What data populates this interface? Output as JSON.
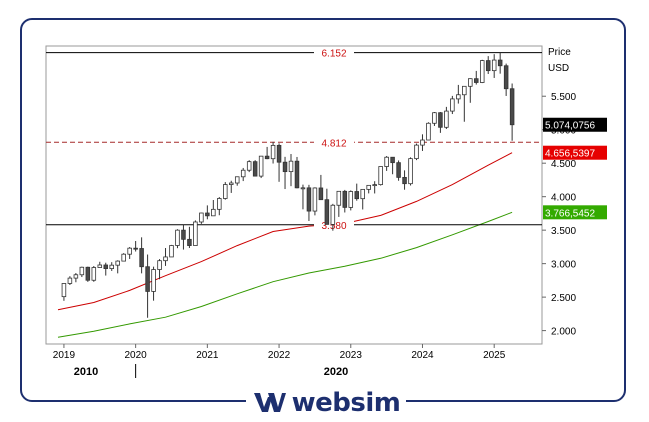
{
  "brand": {
    "name": "websim",
    "logo_icon": "websim-w-icon",
    "color": "#1d2f6f"
  },
  "chart_data": {
    "type": "candlestick",
    "title": "",
    "ylabel": "Price",
    "yunit": "USD",
    "ylim": [
      1800,
      6250
    ],
    "yticks": [
      2000,
      2500,
      3000,
      3500,
      4000,
      4500,
      5000,
      5500
    ],
    "ytick_labels": [
      "2.000",
      "2.500",
      "3.000",
      "3.500",
      "4.000",
      "4.500",
      "5.000",
      "5.500"
    ],
    "xlim": [
      "2018-10",
      "2025-09"
    ],
    "xticks": [
      "2019",
      "2020",
      "2021",
      "2022",
      "2023",
      "2024",
      "2025"
    ],
    "decade_labels": [
      "2010",
      "2020"
    ],
    "grid": false,
    "reference_lines": [
      {
        "value": 6152,
        "label": "6.152",
        "style": "solid",
        "color": "#000000"
      },
      {
        "value": 4812,
        "label": "4.812",
        "style": "dashed",
        "color": "#a52a2a"
      },
      {
        "value": 3580,
        "label": "3.580",
        "style": "solid",
        "color": "#000000"
      }
    ],
    "value_tags": [
      {
        "value": 5074.0756,
        "label": "5.074,0756",
        "color": "#000000"
      },
      {
        "value": 4656.5397,
        "label": "4.656,5397",
        "color": "#e60000"
      },
      {
        "value": 3766.5452,
        "label": "3.766,5452",
        "color": "#33aa00"
      }
    ],
    "series": [
      {
        "type": "moving_average",
        "color": "#cc0000",
        "points": [
          [
            "2018-12",
            2310
          ],
          [
            "2019-06",
            2420
          ],
          [
            "2019-12",
            2600
          ],
          [
            "2020-06",
            2820
          ],
          [
            "2020-12",
            3030
          ],
          [
            "2021-06",
            3270
          ],
          [
            "2021-12",
            3480
          ],
          [
            "2022-06",
            3560
          ],
          [
            "2022-12",
            3600
          ],
          [
            "2023-06",
            3720
          ],
          [
            "2023-12",
            3930
          ],
          [
            "2024-06",
            4180
          ],
          [
            "2024-12",
            4470
          ],
          [
            "2025-04",
            4656
          ]
        ]
      },
      {
        "type": "moving_average",
        "color": "#339900",
        "points": [
          [
            "2018-12",
            1900
          ],
          [
            "2019-06",
            1990
          ],
          [
            "2019-12",
            2100
          ],
          [
            "2020-06",
            2200
          ],
          [
            "2020-12",
            2360
          ],
          [
            "2021-06",
            2550
          ],
          [
            "2021-12",
            2730
          ],
          [
            "2022-06",
            2860
          ],
          [
            "2022-12",
            2960
          ],
          [
            "2023-06",
            3080
          ],
          [
            "2023-12",
            3240
          ],
          [
            "2024-06",
            3430
          ],
          [
            "2024-12",
            3630
          ],
          [
            "2025-04",
            3766
          ]
        ]
      }
    ],
    "candles": [
      [
        "2019-01",
        2507,
        2710,
        2445,
        2704
      ],
      [
        "2019-02",
        2704,
        2813,
        2681,
        2784
      ],
      [
        "2019-03",
        2784,
        2860,
        2722,
        2834
      ],
      [
        "2019-04",
        2834,
        2955,
        2800,
        2946
      ],
      [
        "2019-05",
        2946,
        2955,
        2728,
        2752
      ],
      [
        "2019-06",
        2752,
        2965,
        2729,
        2942
      ],
      [
        "2019-07",
        2942,
        3028,
        2940,
        2980
      ],
      [
        "2019-08",
        2980,
        3014,
        2822,
        2926
      ],
      [
        "2019-09",
        2926,
        3022,
        2891,
        2977
      ],
      [
        "2019-10",
        2977,
        3050,
        2855,
        3038
      ],
      [
        "2019-11",
        3038,
        3157,
        3037,
        3141
      ],
      [
        "2019-12",
        3141,
        3248,
        3070,
        3231
      ],
      [
        "2020-01",
        3231,
        3338,
        3181,
        3226
      ],
      [
        "2020-02",
        3226,
        3393,
        2855,
        2954
      ],
      [
        "2020-03",
        2954,
        3136,
        2192,
        2585
      ],
      [
        "2020-04",
        2585,
        2955,
        2447,
        2912
      ],
      [
        "2020-05",
        2912,
        3068,
        2767,
        3044
      ],
      [
        "2020-06",
        3044,
        3233,
        2966,
        3100
      ],
      [
        "2020-07",
        3100,
        3280,
        3100,
        3271
      ],
      [
        "2020-08",
        3271,
        3514,
        3231,
        3500
      ],
      [
        "2020-09",
        3500,
        3588,
        3210,
        3363
      ],
      [
        "2020-10",
        3363,
        3550,
        3234,
        3270
      ],
      [
        "2020-11",
        3270,
        3646,
        3280,
        3622
      ],
      [
        "2020-12",
        3622,
        3760,
        3594,
        3756
      ],
      [
        "2021-01",
        3756,
        3870,
        3662,
        3714
      ],
      [
        "2021-02",
        3714,
        3950,
        3725,
        3811
      ],
      [
        "2021-03",
        3811,
        3994,
        3723,
        3973
      ],
      [
        "2021-04",
        3973,
        4218,
        3955,
        4181
      ],
      [
        "2021-05",
        4181,
        4238,
        4056,
        4204
      ],
      [
        "2021-06",
        4204,
        4302,
        4164,
        4297
      ],
      [
        "2021-07",
        4297,
        4429,
        4233,
        4395
      ],
      [
        "2021-08",
        4395,
        4545,
        4367,
        4523
      ],
      [
        "2021-09",
        4523,
        4545,
        4306,
        4307
      ],
      [
        "2021-10",
        4307,
        4608,
        4278,
        4605
      ],
      [
        "2021-11",
        4605,
        4743,
        4560,
        4567
      ],
      [
        "2021-12",
        4567,
        4818,
        4495,
        4766
      ],
      [
        "2022-01",
        4766,
        4796,
        4222,
        4515
      ],
      [
        "2022-02",
        4515,
        4595,
        4114,
        4374
      ],
      [
        "2022-03",
        4374,
        4637,
        4157,
        4530
      ],
      [
        "2022-04",
        4530,
        4593,
        4125,
        4132
      ],
      [
        "2022-05",
        4132,
        4180,
        3811,
        4132
      ],
      [
        "2022-06",
        4132,
        4177,
        3637,
        3785
      ],
      [
        "2022-07",
        3785,
        4140,
        3721,
        4130
      ],
      [
        "2022-08",
        4130,
        4325,
        3955,
        3955
      ],
      [
        "2022-09",
        3955,
        4119,
        3585,
        3586
      ],
      [
        "2022-10",
        3586,
        3893,
        3492,
        3872
      ],
      [
        "2022-11",
        3872,
        4080,
        3698,
        4080
      ],
      [
        "2022-12",
        4080,
        4101,
        3764,
        3840
      ],
      [
        "2023-01",
        3840,
        4094,
        3795,
        4077
      ],
      [
        "2023-02",
        4077,
        4195,
        3940,
        3970
      ],
      [
        "2023-03",
        3970,
        4110,
        3809,
        4109
      ],
      [
        "2023-04",
        4109,
        4170,
        4049,
        4169
      ],
      [
        "2023-05",
        4169,
        4231,
        4048,
        4180
      ],
      [
        "2023-06",
        4180,
        4450,
        4166,
        4450
      ],
      [
        "2023-07",
        4450,
        4607,
        4385,
        4589
      ],
      [
        "2023-08",
        4589,
        4584,
        4335,
        4508
      ],
      [
        "2023-09",
        4508,
        4541,
        4238,
        4288
      ],
      [
        "2023-10",
        4288,
        4393,
        4104,
        4194
      ],
      [
        "2023-11",
        4194,
        4587,
        4167,
        4568
      ],
      [
        "2023-12",
        4568,
        4793,
        4546,
        4770
      ],
      [
        "2024-01",
        4770,
        4931,
        4683,
        4846
      ],
      [
        "2024-02",
        4846,
        5111,
        4845,
        5096
      ],
      [
        "2024-03",
        5096,
        5264,
        5056,
        5254
      ],
      [
        "2024-04",
        5254,
        5264,
        4953,
        5036
      ],
      [
        "2024-05",
        5036,
        5341,
        5011,
        5278
      ],
      [
        "2024-06",
        5278,
        5505,
        5234,
        5460
      ],
      [
        "2024-07",
        5460,
        5669,
        5390,
        5522
      ],
      [
        "2024-08",
        5522,
        5651,
        5119,
        5648
      ],
      [
        "2024-09",
        5648,
        5767,
        5402,
        5762
      ],
      [
        "2024-10",
        5762,
        5878,
        5674,
        5705
      ],
      [
        "2024-11",
        5705,
        6044,
        5696,
        6032
      ],
      [
        "2024-12",
        6032,
        6099,
        5832,
        5882
      ],
      [
        "2025-01",
        5882,
        6128,
        5773,
        6040
      ],
      [
        "2025-02",
        6040,
        6147,
        5837,
        5955
      ],
      [
        "2025-03",
        5955,
        5987,
        5504,
        5612
      ],
      [
        "2025-04",
        5612,
        5690,
        4835,
        5074
      ]
    ]
  }
}
